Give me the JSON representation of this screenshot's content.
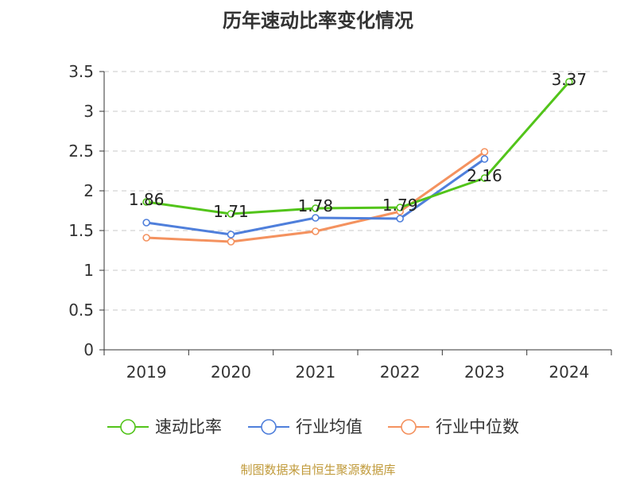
{
  "chart_data": {
    "type": "line",
    "title": "历年速动比率变化情况",
    "xlabel": "",
    "ylabel": "",
    "categories": [
      "2019",
      "2020",
      "2021",
      "2022",
      "2023",
      "2024"
    ],
    "ylim": [
      0,
      3.5
    ],
    "yticks": [
      "0",
      "0.5",
      "1",
      "1.5",
      "2",
      "2.5",
      "3",
      "3.5"
    ],
    "grid": true,
    "legend_position": "bottom",
    "series": [
      {
        "name": "速动比率",
        "color": "#52c41a",
        "values": [
          1.86,
          1.71,
          1.78,
          1.79,
          2.16,
          3.37
        ],
        "labels": [
          "1.86",
          "1.71",
          "1.78",
          "1.79",
          "2.16",
          "3.37"
        ]
      },
      {
        "name": "行业均值",
        "color": "#4f7fdb",
        "values": [
          1.6,
          1.45,
          1.66,
          1.65,
          2.4,
          null
        ]
      },
      {
        "name": "行业中位数",
        "color": "#f4925f",
        "values": [
          1.41,
          1.36,
          1.49,
          1.74,
          2.49,
          null
        ]
      }
    ],
    "source": "制图数据来自恒生聚源数据库"
  }
}
